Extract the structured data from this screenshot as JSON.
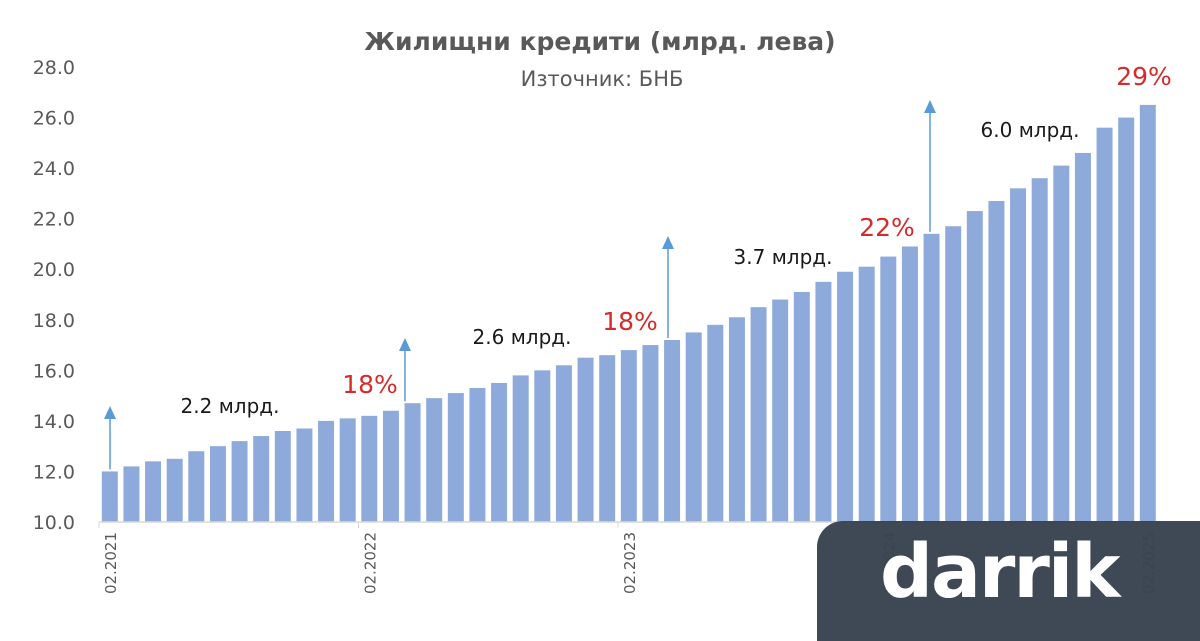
{
  "chart_data": {
    "type": "bar",
    "title": "Жилищни кредити (млрд. лева)",
    "subtitle": "Източник: БНБ",
    "ylim": [
      10.0,
      28.0
    ],
    "yticks": [
      "10.0",
      "12.0",
      "14.0",
      "16.0",
      "18.0",
      "20.0",
      "22.0",
      "24.0",
      "26.0",
      "28.0"
    ],
    "xtick_labels": [
      "02.2021",
      "02.2022",
      "02.2023",
      "02.2024",
      "02.2025"
    ],
    "x_start": "02.2021",
    "x_end": "02.2025",
    "grid": false,
    "bar_color": "#8eaadb",
    "values": [
      12.0,
      12.2,
      12.4,
      12.5,
      12.8,
      13.0,
      13.2,
      13.4,
      13.6,
      13.7,
      14.0,
      14.1,
      14.2,
      14.4,
      14.7,
      14.9,
      15.1,
      15.3,
      15.5,
      15.8,
      16.0,
      16.2,
      16.5,
      16.6,
      16.8,
      17.0,
      17.2,
      17.5,
      17.8,
      18.1,
      18.5,
      18.8,
      19.1,
      19.5,
      19.9,
      20.1,
      20.5,
      20.9,
      21.4,
      21.7,
      22.3,
      22.7,
      23.2,
      23.6,
      24.1,
      24.6,
      25.6,
      26.0,
      26.5
    ],
    "annotations": {
      "amounts": [
        "2.2 млрд.",
        "2.6 млрд.",
        "3.7 млрд.",
        "6.0 млрд."
      ],
      "growth": [
        "18%",
        "18%",
        "22%",
        "29%"
      ],
      "growth_color": "#d42b2b",
      "arrow_color": "#5b9bd5"
    }
  },
  "logo": {
    "text": "darrik"
  }
}
